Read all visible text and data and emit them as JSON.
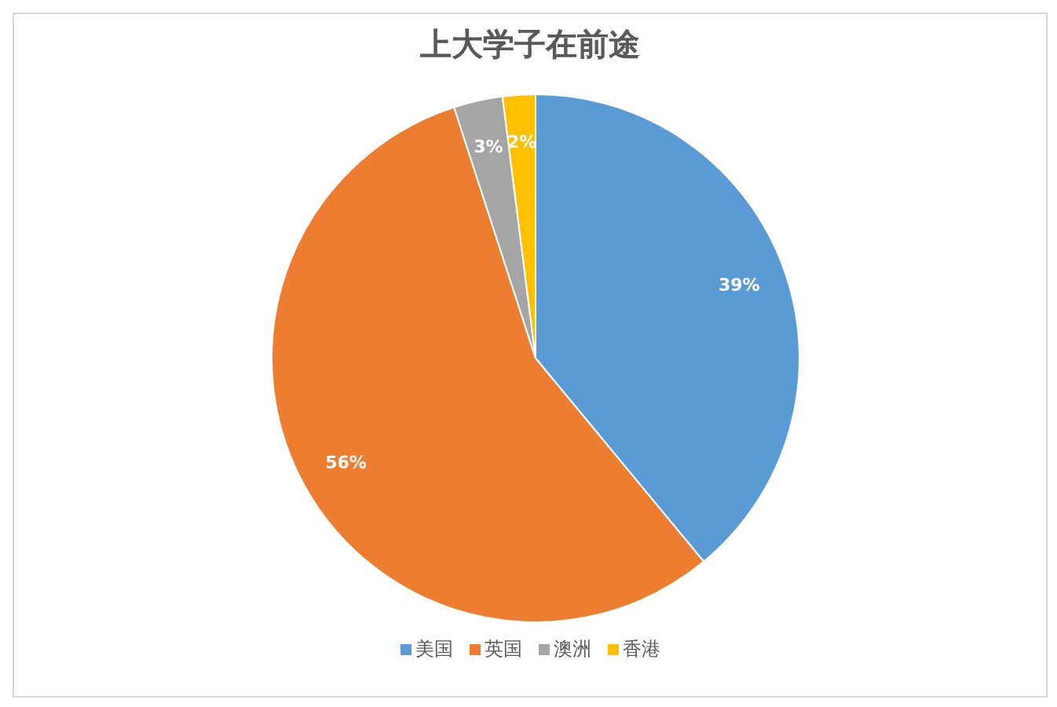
{
  "chart_data": {
    "type": "pie",
    "title": "上大学子在前途",
    "categories": [
      "美国",
      "英国",
      "澳洲",
      "香港"
    ],
    "values": [
      39,
      56,
      3,
      2
    ],
    "value_labels": [
      "39%",
      "56%",
      "3%",
      "2%"
    ],
    "colors": [
      "#5b9bd5",
      "#ed7d31",
      "#a5a5a5",
      "#ffc000"
    ],
    "legend": "bottom"
  }
}
